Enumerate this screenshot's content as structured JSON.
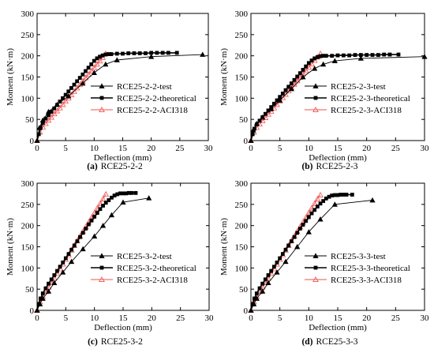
{
  "colors": {
    "test": "#000000",
    "theoretical": "#000000",
    "aci": "#f05050",
    "axis": "#000000"
  },
  "chart_data": [
    {
      "type": "line",
      "caption": {
        "letter": "(a)",
        "text": "RCE25-2-2"
      },
      "xlabel": "Deflection (mm)",
      "ylabel": "Moment (kN·m)",
      "xlim": [
        0,
        30
      ],
      "ylim": [
        0,
        300
      ],
      "xticks": [
        0,
        5,
        10,
        15,
        20,
        25,
        30
      ],
      "yticks": [
        0,
        50,
        100,
        150,
        200,
        250,
        300
      ],
      "grid": false,
      "legend_position": "center-right",
      "series": [
        {
          "name": "RCE25-2-2-test",
          "role": "test",
          "x": [
            0,
            0.4,
            1.0,
            2.0,
            3.5,
            5.5,
            8.0,
            10.0,
            12.0,
            14.0,
            20.0,
            29.0
          ],
          "y": [
            0,
            30,
            48,
            68,
            85,
            105,
            135,
            160,
            180,
            190,
            198,
            203
          ]
        },
        {
          "name": "RCE25-2-2-theoretical",
          "role": "theoretical",
          "x": [
            0,
            0.3,
            0.6,
            1.0,
            1.5,
            2.0,
            2.5,
            3.0,
            3.5,
            4.0,
            4.5,
            5.0,
            5.5,
            6.0,
            6.5,
            7.0,
            7.5,
            8.0,
            8.5,
            9.0,
            9.5,
            10.0,
            10.5,
            11.0,
            11.5,
            12.0,
            12.5,
            13.0,
            14.0,
            15.0,
            16.0,
            17.0,
            18.0,
            19.0,
            20.0,
            21.0,
            22.0,
            23.0,
            24.5
          ],
          "y": [
            0,
            15,
            30,
            42,
            52,
            60,
            68,
            76,
            84,
            92,
            100,
            108,
            116,
            124,
            132,
            140,
            148,
            156,
            164,
            172,
            180,
            188,
            194,
            198,
            201,
            203,
            204,
            204,
            205,
            205,
            206,
            206,
            206,
            206,
            207,
            207,
            207,
            207,
            207
          ]
        },
        {
          "name": "RCE25-2-2-ACI318",
          "role": "aci",
          "x": [
            0,
            0.5,
            1,
            1.5,
            2,
            2.5,
            3,
            3.5,
            4,
            4.5,
            5,
            5.5,
            6,
            6.5,
            7,
            7.5,
            8,
            8.5,
            9,
            9.5,
            10,
            10.5,
            11,
            11.5,
            12
          ],
          "y": [
            0,
            20,
            32,
            40,
            48,
            55,
            63,
            70,
            77,
            85,
            93,
            100,
            108,
            116,
            124,
            132,
            140,
            148,
            156,
            164,
            172,
            180,
            188,
            196,
            205
          ]
        }
      ]
    },
    {
      "type": "line",
      "caption": {
        "letter": "(b)",
        "text": "RCE25-2-3"
      },
      "xlabel": "Deflection (mm)",
      "ylabel": "Moment (kN·m)",
      "xlim": [
        0,
        30
      ],
      "ylim": [
        0,
        300
      ],
      "xticks": [
        0,
        5,
        10,
        15,
        20,
        25,
        30
      ],
      "yticks": [
        0,
        50,
        100,
        150,
        200,
        250,
        300
      ],
      "grid": false,
      "legend_position": "center-right",
      "series": [
        {
          "name": "RCE25-2-3-test",
          "role": "test",
          "x": [
            0,
            0.4,
            1.0,
            2.0,
            3.5,
            5.0,
            7.0,
            9.0,
            11.0,
            12.5,
            14.5,
            19.0,
            30.0
          ],
          "y": [
            0,
            25,
            40,
            55,
            75,
            95,
            122,
            150,
            170,
            180,
            188,
            194,
            198
          ]
        },
        {
          "name": "RCE25-2-3-theoretical",
          "role": "theoretical",
          "x": [
            0,
            0.3,
            0.6,
            1.0,
            1.5,
            2.0,
            2.5,
            3.0,
            3.5,
            4.0,
            4.5,
            5.0,
            5.5,
            6.0,
            6.5,
            7.0,
            7.5,
            8.0,
            8.5,
            9.0,
            9.5,
            10.0,
            10.5,
            11.0,
            11.5,
            12.0,
            12.5,
            13.0,
            14.0,
            15.0,
            16.0,
            17.0,
            18.0,
            19.0,
            20.0,
            21.0,
            22.0,
            23.0,
            24.0,
            25.5
          ],
          "y": [
            0,
            15,
            28,
            38,
            47,
            55,
            63,
            71,
            79,
            87,
            95,
            103,
            111,
            119,
            127,
            135,
            143,
            151,
            159,
            167,
            175,
            183,
            189,
            194,
            197,
            199,
            200,
            200,
            200,
            201,
            201,
            201,
            202,
            202,
            202,
            202,
            202,
            203,
            203,
            203
          ]
        },
        {
          "name": "RCE25-2-3-ACI318",
          "role": "aci",
          "x": [
            0,
            0.5,
            1,
            1.5,
            2,
            2.5,
            3,
            3.5,
            4,
            4.5,
            5,
            5.5,
            6,
            6.5,
            7,
            7.5,
            8,
            8.5,
            9,
            9.5,
            10,
            10.5,
            11,
            11.5,
            12
          ],
          "y": [
            0,
            20,
            31,
            39,
            47,
            54,
            62,
            69,
            77,
            85,
            93,
            101,
            109,
            117,
            125,
            133,
            141,
            149,
            157,
            165,
            173,
            181,
            189,
            197,
            205
          ]
        }
      ]
    },
    {
      "type": "line",
      "caption": {
        "letter": "(c)",
        "text": "RCE25-3-2"
      },
      "xlabel": "Deflection (mm)",
      "ylabel": "Moment (kN·m)",
      "xlim": [
        0,
        30
      ],
      "ylim": [
        0,
        300
      ],
      "xticks": [
        0,
        5,
        10,
        15,
        20,
        25,
        30
      ],
      "yticks": [
        0,
        50,
        100,
        150,
        200,
        250,
        300
      ],
      "grid": false,
      "legend_position": "center-right",
      "series": [
        {
          "name": "RCE25-3-2-test",
          "role": "test",
          "x": [
            0,
            0.5,
            1.0,
            2.0,
            3.0,
            4.5,
            6.0,
            8.0,
            10.0,
            11.5,
            13.0,
            15.0,
            19.5
          ],
          "y": [
            0,
            15,
            28,
            45,
            65,
            90,
            115,
            145,
            175,
            200,
            225,
            255,
            265
          ]
        },
        {
          "name": "RCE25-3-2-theoretical",
          "role": "theoretical",
          "x": [
            0,
            0.3,
            0.6,
            1.0,
            1.5,
            2.0,
            2.5,
            3.0,
            3.5,
            4.0,
            4.5,
            5.0,
            5.5,
            6.0,
            6.5,
            7.0,
            7.5,
            8.0,
            8.5,
            9.0,
            9.5,
            10.0,
            10.5,
            11.0,
            11.5,
            12.0,
            12.5,
            13.0,
            13.5,
            14.0,
            14.5,
            15.0,
            15.5,
            16.0,
            16.5,
            17.2
          ],
          "y": [
            0,
            15,
            28,
            40,
            52,
            63,
            73,
            83,
            93,
            103,
            113,
            123,
            133,
            143,
            153,
            163,
            173,
            183,
            193,
            203,
            212,
            221,
            230,
            239,
            247,
            254,
            260,
            266,
            271,
            274,
            276,
            276,
            276,
            277,
            277,
            277
          ]
        },
        {
          "name": "RCE25-3-2-ACI318",
          "role": "aci",
          "x": [
            0,
            0.5,
            1,
            1.5,
            2,
            2.5,
            3,
            3.5,
            4,
            4.5,
            5,
            5.5,
            6,
            6.5,
            7,
            7.5,
            8,
            8.5,
            9,
            9.5,
            10,
            10.5,
            11,
            11.5,
            12
          ],
          "y": [
            0,
            20,
            33,
            44,
            55,
            65,
            76,
            87,
            98,
            109,
            120,
            131,
            142,
            153,
            164,
            175,
            186,
            197,
            208,
            219,
            230,
            241,
            252,
            263,
            274
          ]
        }
      ]
    },
    {
      "type": "line",
      "caption": {
        "letter": "(d)",
        "text": "RCE25-3-3"
      },
      "xlabel": "Deflection (mm)",
      "ylabel": "Moment (kN·m)",
      "xlim": [
        0,
        30
      ],
      "ylim": [
        0,
        300
      ],
      "xticks": [
        0,
        5,
        10,
        15,
        20,
        25,
        30
      ],
      "yticks": [
        0,
        50,
        100,
        150,
        200,
        250,
        300
      ],
      "grid": false,
      "legend_position": "center-right",
      "series": [
        {
          "name": "RCE25-3-3-test",
          "role": "test",
          "x": [
            0,
            0.5,
            1.0,
            2.0,
            3.0,
            4.5,
            6.0,
            8.0,
            10.0,
            12.0,
            14.5,
            21.0
          ],
          "y": [
            0,
            15,
            28,
            45,
            65,
            90,
            115,
            150,
            185,
            215,
            250,
            260
          ]
        },
        {
          "name": "RCE25-3-3-theoretical",
          "role": "theoretical",
          "x": [
            0,
            0.3,
            0.6,
            1.0,
            1.5,
            2.0,
            2.5,
            3.0,
            3.5,
            4.0,
            4.5,
            5.0,
            5.5,
            6.0,
            6.5,
            7.0,
            7.5,
            8.0,
            8.5,
            9.0,
            9.5,
            10.0,
            10.5,
            11.0,
            11.5,
            12.0,
            12.5,
            13.0,
            13.5,
            14.0,
            14.5,
            15.0,
            15.5,
            16.0,
            16.5,
            17.5
          ],
          "y": [
            0,
            15,
            28,
            40,
            52,
            63,
            73,
            83,
            93,
            103,
            113,
            123,
            133,
            143,
            153,
            163,
            173,
            183,
            193,
            202,
            211,
            220,
            229,
            237,
            245,
            252,
            258,
            264,
            268,
            271,
            272,
            272,
            273,
            273,
            273,
            273
          ]
        },
        {
          "name": "RCE25-3-3-ACI318",
          "role": "aci",
          "x": [
            0,
            0.5,
            1,
            1.5,
            2,
            2.5,
            3,
            3.5,
            4,
            4.5,
            5,
            5.5,
            6,
            6.5,
            7,
            7.5,
            8,
            8.5,
            9,
            9.5,
            10,
            10.5,
            11,
            11.5,
            12
          ],
          "y": [
            0,
            20,
            33,
            44,
            55,
            65,
            76,
            87,
            98,
            109,
            120,
            131,
            142,
            153,
            164,
            175,
            186,
            197,
            208,
            219,
            230,
            241,
            252,
            263,
            272
          ]
        }
      ]
    }
  ]
}
